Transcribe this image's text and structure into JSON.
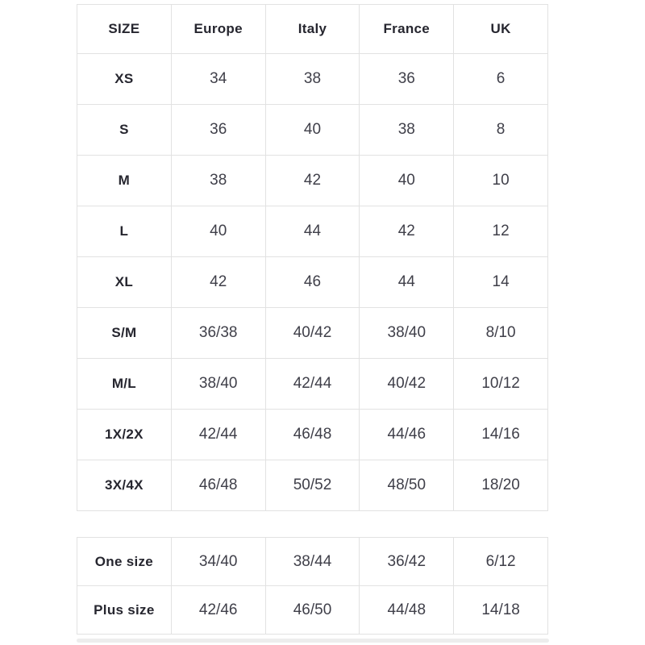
{
  "size_chart": {
    "headers": [
      "SIZE",
      "Europe",
      "Italy",
      "France",
      "UK"
    ],
    "rows": [
      [
        "XS",
        "34",
        "38",
        "36",
        "6"
      ],
      [
        "S",
        "36",
        "40",
        "38",
        "8"
      ],
      [
        "M",
        "38",
        "42",
        "40",
        "10"
      ],
      [
        "L",
        "40",
        "44",
        "42",
        "12"
      ],
      [
        "XL",
        "42",
        "46",
        "44",
        "14"
      ],
      [
        "S/M",
        "36/38",
        "40/42",
        "38/40",
        "8/10"
      ],
      [
        "M/L",
        "38/40",
        "42/44",
        "40/42",
        "10/12"
      ],
      [
        "1X/2X",
        "42/44",
        "46/48",
        "44/46",
        "14/16"
      ],
      [
        "3X/4X",
        "46/48",
        "50/52",
        "48/50",
        "18/20"
      ]
    ],
    "special_rows": [
      [
        "One size",
        "34/40",
        "38/44",
        "36/42",
        "6/12"
      ],
      [
        "Plus size",
        "42/46",
        "46/50",
        "44/48",
        "14/18"
      ]
    ],
    "colors": {
      "border": "#e2e2e2",
      "header_text": "#26262f",
      "cell_text": "#3f3f49",
      "background": "#ffffff",
      "scrollbar_track": "#ededed"
    }
  }
}
